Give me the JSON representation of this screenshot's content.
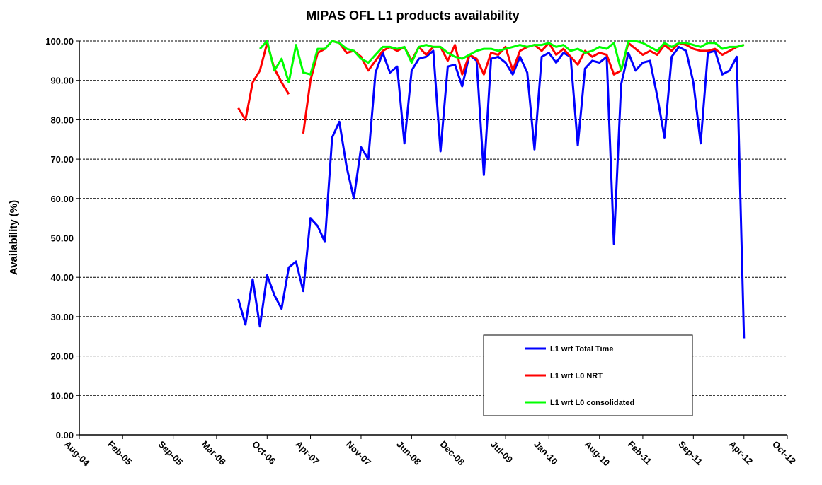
{
  "chart_data": {
    "type": "line",
    "title": "MIPAS OFL L1 products availability",
    "y_label": "Availability (%)",
    "x": [
      "Jun-06",
      "Jul-06",
      "Aug-06",
      "Sep-06",
      "Oct-06",
      "Nov-06",
      "Dec-06",
      "Jan-07",
      "Feb-07",
      "Mar-07",
      "Apr-07",
      "May-07",
      "Jun-07",
      "Jul-07",
      "Aug-07",
      "Sep-07",
      "Oct-07",
      "Nov-07",
      "Dec-07",
      "Jan-08",
      "Feb-08",
      "Mar-08",
      "Apr-08",
      "May-08",
      "Jun-08",
      "Jul-08",
      "Aug-08",
      "Sep-08",
      "Oct-08",
      "Nov-08",
      "Dec-08",
      "Jan-09",
      "Feb-09",
      "Mar-09",
      "Apr-09",
      "May-09",
      "Jun-09",
      "Jul-09",
      "Aug-09",
      "Sep-09",
      "Oct-09",
      "Nov-09",
      "Dec-09",
      "Jan-10",
      "Feb-10",
      "Mar-10",
      "Apr-10",
      "May-10",
      "Jun-10",
      "Jul-10",
      "Aug-10",
      "Sep-10",
      "Oct-10",
      "Nov-10",
      "Dec-10",
      "Jan-11",
      "Feb-11",
      "Mar-11",
      "Apr-11",
      "May-11",
      "Jun-11",
      "Jul-11",
      "Aug-11",
      "Sep-11",
      "Oct-11",
      "Nov-11",
      "Dec-11",
      "Jan-12",
      "Feb-12",
      "Mar-12",
      "Apr-12"
    ],
    "series": [
      {
        "name": "L1 wrt Total Time",
        "color": "#0000ff",
        "values": [
          34.5,
          28,
          39.5,
          27.5,
          40.5,
          35.5,
          32,
          42.5,
          44,
          36.5,
          55,
          53,
          49,
          75.5,
          79.5,
          68,
          60,
          73,
          70,
          92,
          97,
          92,
          93.5,
          74,
          92.5,
          95.5,
          96,
          97.5,
          72,
          93.5,
          94,
          88.5,
          96.5,
          95,
          66,
          95.5,
          96,
          94.5,
          91.5,
          96,
          92,
          72.5,
          96,
          97,
          94.5,
          97,
          96,
          73.5,
          93,
          95,
          94.5,
          96,
          48.5,
          89,
          97,
          92.5,
          94.5,
          95,
          86,
          75.5,
          96,
          98.5,
          97.5,
          89.5,
          74,
          97,
          97.5,
          91.5,
          92.5,
          96,
          24.5
        ]
      },
      {
        "name": "L1 wrt L0 NRT",
        "color": "#ff0000",
        "values": [
          83,
          80,
          89.5,
          92.5,
          99.5,
          93,
          89.5,
          86.5,
          null,
          76.5,
          90,
          97,
          98,
          100,
          99.5,
          97,
          97.5,
          96,
          92.5,
          95,
          97.5,
          98.5,
          97.5,
          98.5,
          95,
          98.5,
          96.5,
          98.5,
          98.5,
          95,
          99,
          91.5,
          96.5,
          95.5,
          91.5,
          97,
          96.5,
          98.5,
          92.5,
          97.5,
          98.5,
          99,
          97.5,
          99.5,
          96.5,
          98,
          96,
          94,
          97.5,
          96,
          97,
          96.5,
          91.5,
          92.5,
          99.5,
          98,
          96.5,
          97.5,
          96.5,
          99,
          97.5,
          99.5,
          99,
          98,
          97.5,
          97.5,
          98,
          96.5,
          97.5,
          98.5,
          99
        ]
      },
      {
        "name": "L1 wrt L0 consolidated",
        "color": "#00ff00",
        "values": [
          null,
          null,
          null,
          98,
          100,
          92.5,
          95.5,
          89.5,
          99,
          92,
          91.5,
          98,
          98,
          100,
          99.5,
          98,
          97.5,
          95.5,
          94.5,
          96.5,
          98.5,
          98.5,
          98,
          98.5,
          94.5,
          98.5,
          99,
          98.5,
          98.5,
          97,
          96,
          95.5,
          96.5,
          97.5,
          98,
          98,
          97.5,
          98,
          98.5,
          99,
          98.5,
          99,
          99,
          99.5,
          98.5,
          99,
          97.5,
          98,
          97,
          97.5,
          98.5,
          98,
          99.5,
          92.5,
          100,
          100,
          99.5,
          98.5,
          97.5,
          99.5,
          98.5,
          99.5,
          99.5,
          99,
          98.5,
          99.5,
          99.5,
          98,
          98.5,
          98.5,
          99
        ]
      }
    ],
    "xlim": [
      "Aug-04",
      "Oct-12"
    ],
    "xticks": [
      "Aug-04",
      "Feb-05",
      "Sep-05",
      "Mar-06",
      "Oct-06",
      "Apr-07",
      "Nov-07",
      "Jun-08",
      "Dec-08",
      "Jul-09",
      "Jan-10",
      "Aug-10",
      "Feb-11",
      "Sep-11",
      "Apr-12",
      "Oct-12"
    ],
    "ylim": [
      0,
      100
    ],
    "yticks": [
      {
        "value": 0,
        "label": "0.00"
      },
      {
        "value": 10,
        "label": "10.00"
      },
      {
        "value": 20,
        "label": "20.00"
      },
      {
        "value": 30,
        "label": "30.00"
      },
      {
        "value": 40,
        "label": "40.00"
      },
      {
        "value": 50,
        "label": "50.00"
      },
      {
        "value": 60,
        "label": "60.00"
      },
      {
        "value": 70,
        "label": "70.00"
      },
      {
        "value": 80,
        "label": "80.00"
      },
      {
        "value": 90,
        "label": "90.00"
      },
      {
        "value": 100,
        "label": "100.00"
      }
    ],
    "grid": true,
    "legend": "lower right"
  }
}
